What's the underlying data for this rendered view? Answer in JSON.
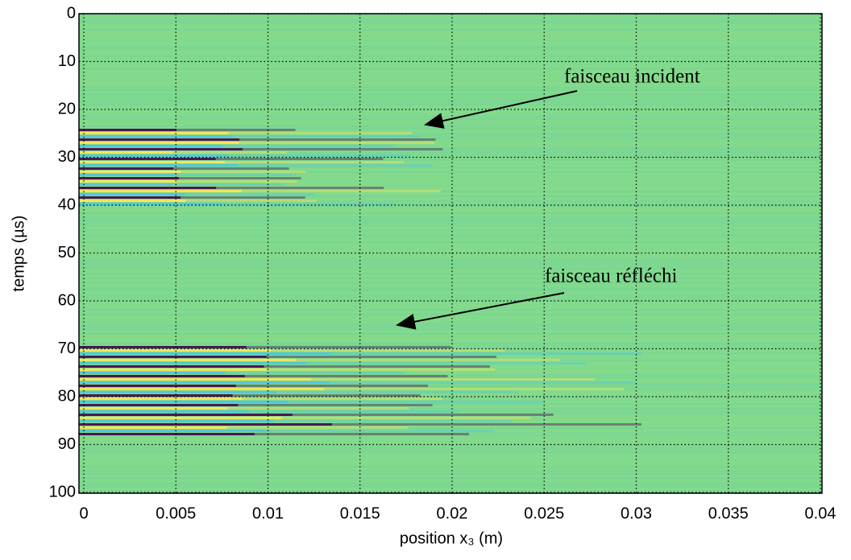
{
  "chart_data": {
    "type": "heatmap",
    "xlabel": "position x₃ (m)",
    "ylabel": "temps (µs)",
    "xlim": [
      0,
      0.04
    ],
    "xticks": [
      0,
      0.005,
      0.01,
      0.015,
      0.02,
      0.025,
      0.03,
      0.035,
      0.04
    ],
    "ylim": [
      0,
      100
    ],
    "yticks": [
      0,
      10,
      20,
      30,
      40,
      50,
      60,
      70,
      80,
      90,
      100
    ],
    "y_reversed": true,
    "grid": true,
    "annotations": [
      "faisceau incident",
      "faisceau réfléchi"
    ]
  }
}
